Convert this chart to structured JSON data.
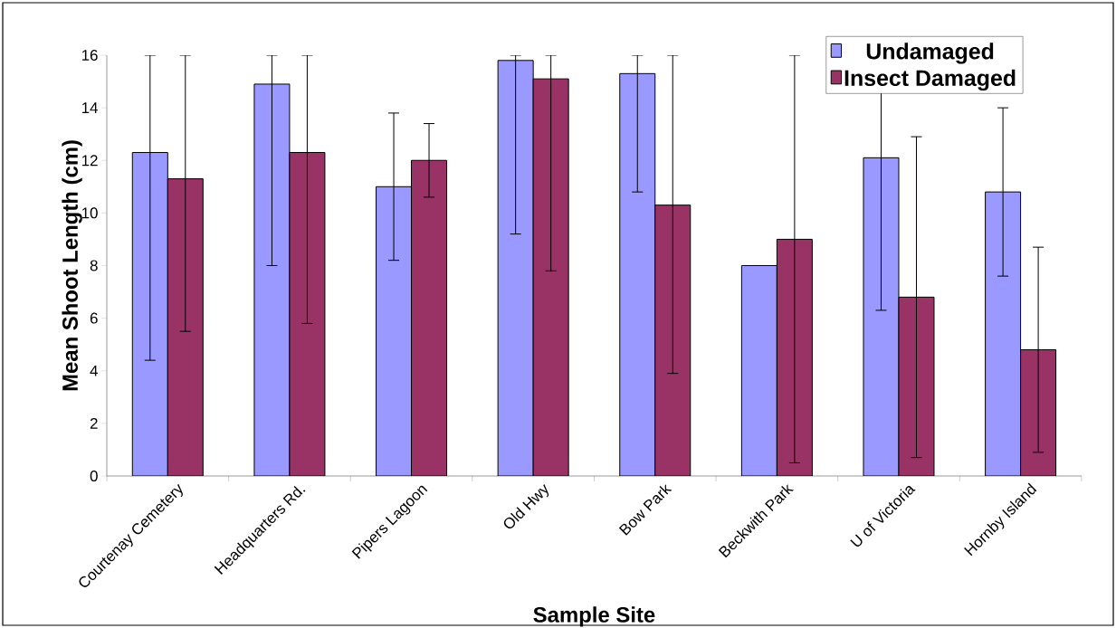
{
  "chart_data": {
    "type": "bar",
    "xlabel": "Sample Site",
    "ylabel": "Mean Shoot Length (cm)",
    "categories": [
      "Courtenay Cemetery",
      "Headquarters Rd.",
      "Pipers Lagoon",
      "Old Hwy",
      "Bow Park",
      "Beckwith Park",
      "U of Victoria",
      "Hornby Island"
    ],
    "series": [
      {
        "name": "Undamaged",
        "color": "#9999ff",
        "values": [
          12.3,
          14.9,
          11.0,
          15.8,
          15.3,
          8.0,
          12.1,
          10.8
        ],
        "errors": [
          [
            4.4,
            16
          ],
          [
            8.0,
            16
          ],
          [
            8.2,
            13.8
          ],
          [
            9.2,
            16
          ],
          [
            10.8,
            16
          ],
          0,
          [
            6.3,
            16
          ],
          [
            7.6,
            14.0
          ]
        ]
      },
      {
        "name": "Insect Damaged",
        "color": "#993366",
        "values": [
          11.3,
          12.3,
          12.0,
          15.1,
          10.3,
          9.0,
          6.8,
          4.8
        ],
        "errors": [
          [
            5.5,
            16
          ],
          [
            5.8,
            16
          ],
          [
            10.6,
            13.4
          ],
          [
            7.8,
            16
          ],
          [
            3.9,
            16
          ],
          [
            0.5,
            16
          ],
          [
            0.7,
            12.9
          ],
          [
            0.9,
            8.7
          ]
        ]
      }
    ],
    "ylim": [
      0,
      16
    ],
    "yticks": [
      0,
      2,
      4,
      6,
      8,
      10,
      12,
      14,
      16
    ],
    "legend": "top right"
  }
}
